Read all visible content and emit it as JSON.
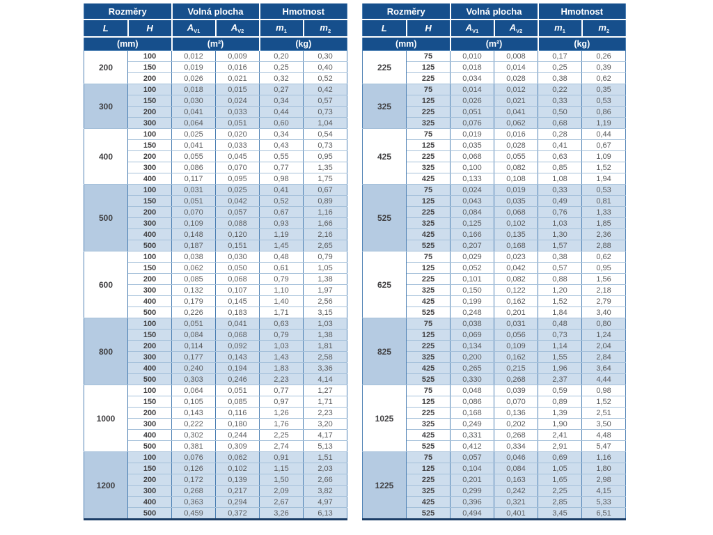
{
  "colors": {
    "header_bg": "#164F8C",
    "header_text": "#FFFFFF",
    "group_fill_blue": "#CDDDED",
    "l_cell_fill_blue": "#B5CBE2",
    "grid_vertical": "#4D80B3",
    "grid_horizontal": "#A3BFD9",
    "bottom_border": "#1B3D66",
    "value_text": "#58595B",
    "bold_text": "#414042"
  },
  "header": {
    "rozmery": "Rozměry",
    "volna_plocha": "Volná plocha",
    "hmotnost": "Hmotnost",
    "col_l": "L",
    "col_h": "H",
    "a_base": "A",
    "a1_sub": "V1",
    "a2_sub": "V2",
    "m_base": "m",
    "m1_sub": "1",
    "m2_sub": "2",
    "unit_mm": "(mm)",
    "unit_m2": "(m²)",
    "unit_kg": "(kg)"
  },
  "tables": [
    {
      "name": "left",
      "groups": [
        {
          "L": "200",
          "rows": [
            [
              "100",
              "0,012",
              "0,009",
              "0,20",
              "0,30"
            ],
            [
              "150",
              "0,019",
              "0,016",
              "0,25",
              "0,40"
            ],
            [
              "200",
              "0,026",
              "0,021",
              "0,32",
              "0,52"
            ]
          ]
        },
        {
          "L": "300",
          "rows": [
            [
              "100",
              "0,018",
              "0,015",
              "0,27",
              "0,42"
            ],
            [
              "150",
              "0,030",
              "0,024",
              "0,34",
              "0,57"
            ],
            [
              "200",
              "0,041",
              "0,033",
              "0,44",
              "0,73"
            ],
            [
              "300",
              "0,064",
              "0,051",
              "0,60",
              "1,04"
            ]
          ]
        },
        {
          "L": "400",
          "rows": [
            [
              "100",
              "0,025",
              "0,020",
              "0,34",
              "0,54"
            ],
            [
              "150",
              "0,041",
              "0,033",
              "0,43",
              "0,73"
            ],
            [
              "200",
              "0,055",
              "0,045",
              "0,55",
              "0,95"
            ],
            [
              "300",
              "0,086",
              "0,070",
              "0,77",
              "1,35"
            ],
            [
              "400",
              "0,117",
              "0,095",
              "0,98",
              "1,75"
            ]
          ]
        },
        {
          "L": "500",
          "rows": [
            [
              "100",
              "0,031",
              "0,025",
              "0,41",
              "0,67"
            ],
            [
              "150",
              "0,051",
              "0,042",
              "0,52",
              "0,89"
            ],
            [
              "200",
              "0,070",
              "0,057",
              "0,67",
              "1,16"
            ],
            [
              "300",
              "0,109",
              "0,088",
              "0,93",
              "1,66"
            ],
            [
              "400",
              "0,148",
              "0,120",
              "1,19",
              "2,16"
            ],
            [
              "500",
              "0,187",
              "0,151",
              "1,45",
              "2,65"
            ]
          ]
        },
        {
          "L": "600",
          "rows": [
            [
              "100",
              "0,038",
              "0,030",
              "0,48",
              "0,79"
            ],
            [
              "150",
              "0,062",
              "0,050",
              "0,61",
              "1,05"
            ],
            [
              "200",
              "0,085",
              "0,068",
              "0,79",
              "1,38"
            ],
            [
              "300",
              "0,132",
              "0,107",
              "1,10",
              "1,97"
            ],
            [
              "400",
              "0,179",
              "0,145",
              "1,40",
              "2,56"
            ],
            [
              "500",
              "0,226",
              "0,183",
              "1,71",
              "3,15"
            ]
          ]
        },
        {
          "L": "800",
          "rows": [
            [
              "100",
              "0,051",
              "0,041",
              "0,63",
              "1,03"
            ],
            [
              "150",
              "0,084",
              "0,068",
              "0,79",
              "1,38"
            ],
            [
              "200",
              "0,114",
              "0,092",
              "1,03",
              "1,81"
            ],
            [
              "300",
              "0,177",
              "0,143",
              "1,43",
              "2,58"
            ],
            [
              "400",
              "0,240",
              "0,194",
              "1,83",
              "3,36"
            ],
            [
              "500",
              "0,303",
              "0,246",
              "2,23",
              "4,14"
            ]
          ]
        },
        {
          "L": "1000",
          "rows": [
            [
              "100",
              "0,064",
              "0,051",
              "0,77",
              "1,27"
            ],
            [
              "150",
              "0,105",
              "0,085",
              "0,97",
              "1,71"
            ],
            [
              "200",
              "0,143",
              "0,116",
              "1,26",
              "2,23"
            ],
            [
              "300",
              "0,222",
              "0,180",
              "1,76",
              "3,20"
            ],
            [
              "400",
              "0,302",
              "0,244",
              "2,25",
              "4,17"
            ],
            [
              "500",
              "0,381",
              "0,309",
              "2,74",
              "5,13"
            ]
          ]
        },
        {
          "L": "1200",
          "rows": [
            [
              "100",
              "0,076",
              "0,062",
              "0,91",
              "1,51"
            ],
            [
              "150",
              "0,126",
              "0,102",
              "1,15",
              "2,03"
            ],
            [
              "200",
              "0,172",
              "0,139",
              "1,50",
              "2,66"
            ],
            [
              "300",
              "0,268",
              "0,217",
              "2,09",
              "3,82"
            ],
            [
              "400",
              "0,363",
              "0,294",
              "2,67",
              "4,97"
            ],
            [
              "500",
              "0,459",
              "0,372",
              "3,26",
              "6,13"
            ]
          ]
        }
      ]
    },
    {
      "name": "right",
      "groups": [
        {
          "L": "225",
          "rows": [
            [
              "75",
              "0,010",
              "0,008",
              "0,17",
              "0,26"
            ],
            [
              "125",
              "0,018",
              "0,014",
              "0,25",
              "0,39"
            ],
            [
              "225",
              "0,034",
              "0,028",
              "0,38",
              "0,62"
            ]
          ]
        },
        {
          "L": "325",
          "rows": [
            [
              "75",
              "0,014",
              "0,012",
              "0,22",
              "0,35"
            ],
            [
              "125",
              "0,026",
              "0,021",
              "0,33",
              "0,53"
            ],
            [
              "225",
              "0,051",
              "0,041",
              "0,50",
              "0,86"
            ],
            [
              "325",
              "0,076",
              "0,062",
              "0,68",
              "1,19"
            ]
          ]
        },
        {
          "L": "425",
          "rows": [
            [
              "75",
              "0,019",
              "0,016",
              "0,28",
              "0,44"
            ],
            [
              "125",
              "0,035",
              "0,028",
              "0,41",
              "0,67"
            ],
            [
              "225",
              "0,068",
              "0,055",
              "0,63",
              "1,09"
            ],
            [
              "325",
              "0,100",
              "0,082",
              "0,85",
              "1,52"
            ],
            [
              "425",
              "0,133",
              "0,108",
              "1,08",
              "1,94"
            ]
          ]
        },
        {
          "L": "525",
          "rows": [
            [
              "75",
              "0,024",
              "0,019",
              "0,33",
              "0,53"
            ],
            [
              "125",
              "0,043",
              "0,035",
              "0,49",
              "0,81"
            ],
            [
              "225",
              "0,084",
              "0,068",
              "0,76",
              "1,33"
            ],
            [
              "325",
              "0,125",
              "0,102",
              "1,03",
              "1,85"
            ],
            [
              "425",
              "0,166",
              "0,135",
              "1,30",
              "2,36"
            ],
            [
              "525",
              "0,207",
              "0,168",
              "1,57",
              "2,88"
            ]
          ]
        },
        {
          "L": "625",
          "rows": [
            [
              "75",
              "0,029",
              "0,023",
              "0,38",
              "0,62"
            ],
            [
              "125",
              "0,052",
              "0,042",
              "0,57",
              "0,95"
            ],
            [
              "225",
              "0,101",
              "0,082",
              "0,88",
              "1,56"
            ],
            [
              "325",
              "0,150",
              "0,122",
              "1,20",
              "2,18"
            ],
            [
              "425",
              "0,199",
              "0,162",
              "1,52",
              "2,79"
            ],
            [
              "525",
              "0,248",
              "0,201",
              "1,84",
              "3,40"
            ]
          ]
        },
        {
          "L": "825",
          "rows": [
            [
              "75",
              "0,038",
              "0,031",
              "0,48",
              "0,80"
            ],
            [
              "125",
              "0,069",
              "0,056",
              "0,73",
              "1,24"
            ],
            [
              "225",
              "0,134",
              "0,109",
              "1,14",
              "2,04"
            ],
            [
              "325",
              "0,200",
              "0,162",
              "1,55",
              "2,84"
            ],
            [
              "425",
              "0,265",
              "0,215",
              "1,96",
              "3,64"
            ],
            [
              "525",
              "0,330",
              "0,268",
              "2,37",
              "4,44"
            ]
          ]
        },
        {
          "L": "1025",
          "rows": [
            [
              "75",
              "0,048",
              "0,039",
              "0,59",
              "0,98"
            ],
            [
              "125",
              "0,086",
              "0,070",
              "0,89",
              "1,52"
            ],
            [
              "225",
              "0,168",
              "0,136",
              "1,39",
              "2,51"
            ],
            [
              "325",
              "0,249",
              "0,202",
              "1,90",
              "3,50"
            ],
            [
              "425",
              "0,331",
              "0,268",
              "2,41",
              "4,48"
            ],
            [
              "525",
              "0,412",
              "0,334",
              "2,91",
              "5,47"
            ]
          ]
        },
        {
          "L": "1225",
          "rows": [
            [
              "75",
              "0,057",
              "0,046",
              "0,69",
              "1,16"
            ],
            [
              "125",
              "0,104",
              "0,084",
              "1,05",
              "1,80"
            ],
            [
              "225",
              "0,201",
              "0,163",
              "1,65",
              "2,98"
            ],
            [
              "325",
              "0,299",
              "0,242",
              "2,25",
              "4,15"
            ],
            [
              "425",
              "0,396",
              "0,321",
              "2,85",
              "5,33"
            ],
            [
              "525",
              "0,494",
              "0,401",
              "3,45",
              "6,51"
            ]
          ]
        }
      ]
    }
  ]
}
